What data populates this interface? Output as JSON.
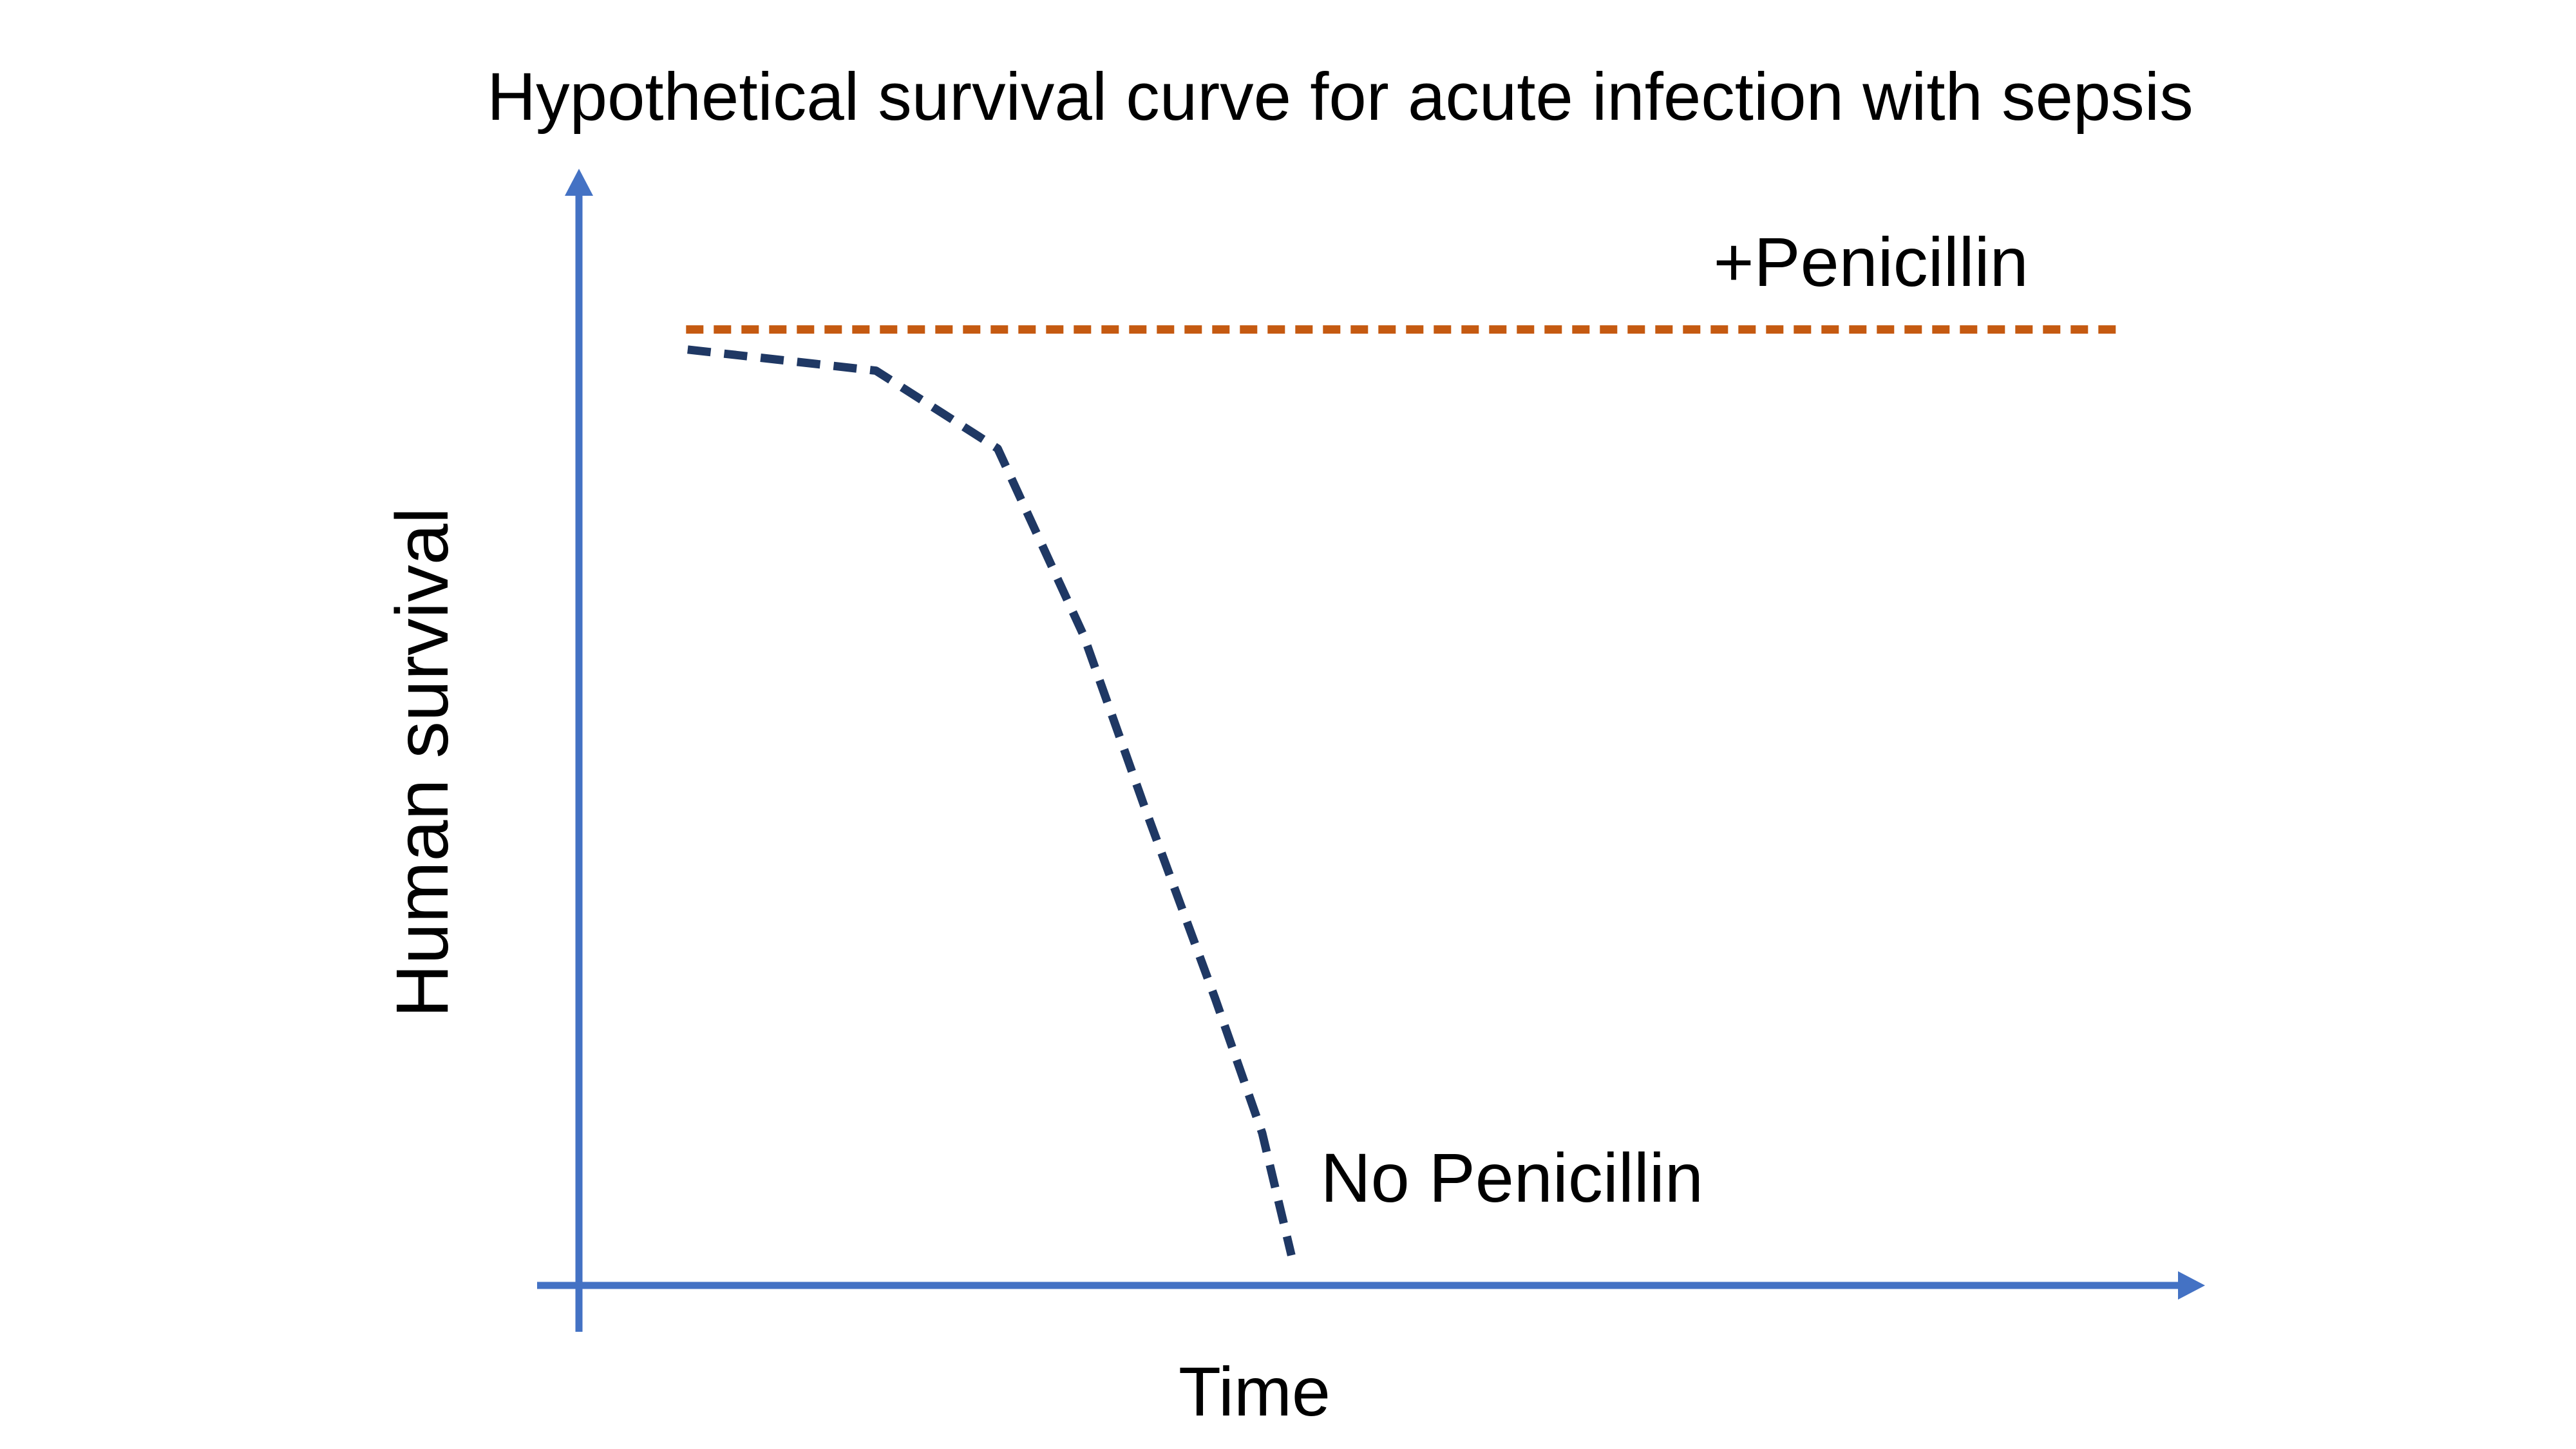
{
  "page": {
    "background_color": "#FFFFFF",
    "text_color": "#000000"
  },
  "chart_data": {
    "type": "line",
    "title": "Hypothetical survival curve for acute infection with sepsis",
    "xlabel": "Time",
    "ylabel": "Human survival",
    "legend_position": "none",
    "gridlines": false,
    "tick_labels": "none",
    "axis_style": "arrowed-axes",
    "axis_color": "#4472C4",
    "x_range": [
      0,
      100
    ],
    "y_range": [
      0,
      100
    ],
    "series": [
      {
        "name": "+Penicillin",
        "label": "+Penicillin",
        "color": "#C55A11",
        "line_style": "dashed",
        "dash_pattern": [
          27,
          16
        ],
        "stroke_width": 13,
        "points": [
          [
            6.6,
            85.9
          ],
          [
            95.2,
            85.9
          ]
        ],
        "label_anchor": [
          69.9,
          95.1
        ],
        "description": "flat horizontal line, survival stays high over time"
      },
      {
        "name": "No Penicillin",
        "label": "No Penicillin",
        "color": "#1F3864",
        "line_style": "dashed",
        "dash_pattern": [
          36,
          21
        ],
        "stroke_width": 13,
        "points": [
          [
            6.7,
            84.1
          ],
          [
            18.3,
            82.2
          ],
          [
            25.8,
            75.2
          ],
          [
            31.1,
            58.4
          ],
          [
            34.8,
            43.2
          ],
          [
            39.2,
            25.8
          ],
          [
            42.1,
            13.7
          ],
          [
            43.9,
            2.7
          ]
        ],
        "label_anchor": [
          45.7,
          12.8
        ],
        "description": "survival declines slowly at first, then drops steeply to near zero"
      }
    ]
  }
}
